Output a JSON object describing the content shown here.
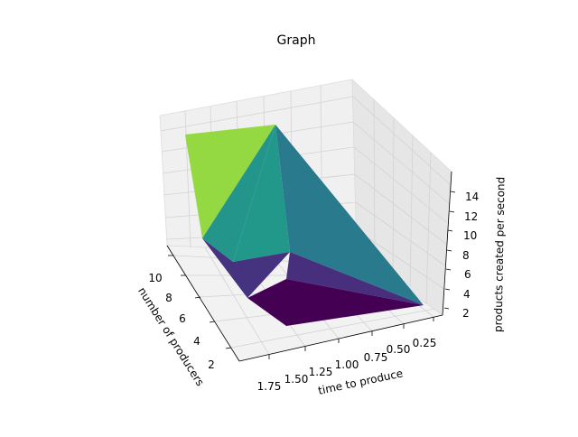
{
  "chart_data": {
    "type": "surface",
    "title": "Graph",
    "xlabel": "time to produce",
    "ylabel": "number of producers",
    "zlabel": "products created per second",
    "x_ticks": [
      "1.75",
      "1.50",
      "1.25",
      "1.00",
      "0.75",
      "0.50",
      "0.25"
    ],
    "y_ticks": [
      "2",
      "4",
      "6",
      "8",
      "10"
    ],
    "z_ticks": [
      "2",
      "4",
      "6",
      "8",
      "10",
      "12",
      "14"
    ],
    "grid": true,
    "colormap": "viridis",
    "facet_colors": [
      "#94d941",
      "#23958a",
      "#22988b",
      "#2a7a8e",
      "#463380",
      "#472f7d",
      "#440154"
    ]
  }
}
